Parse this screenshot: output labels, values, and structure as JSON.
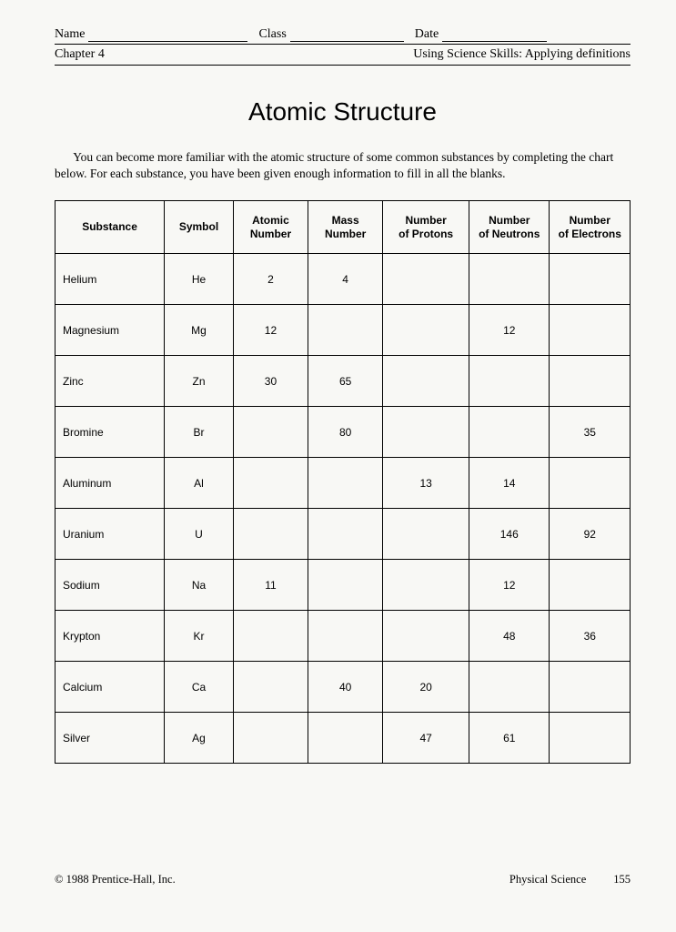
{
  "header": {
    "name_label": "Name",
    "class_label": "Class",
    "date_label": "Date",
    "chapter": "Chapter 4",
    "skills": "Using Science Skills: Applying definitions"
  },
  "title": "Atomic Structure",
  "instructions": "You can become more familiar with the atomic structure of some common substances by completing the chart below. For each substance, you have been given enough information to fill in all the blanks.",
  "table": {
    "columns": [
      "Substance",
      "Symbol",
      "Atomic Number",
      "Mass Number",
      "Number of Protons",
      "Number of Neutrons",
      "Number of Electrons"
    ],
    "col_widths_pct": [
      19,
      12,
      13,
      13,
      15,
      14,
      14
    ],
    "rows": [
      [
        "Helium",
        "He",
        "2",
        "4",
        "",
        "",
        ""
      ],
      [
        "Magnesium",
        "Mg",
        "12",
        "",
        "",
        "12",
        ""
      ],
      [
        "Zinc",
        "Zn",
        "30",
        "65",
        "",
        "",
        ""
      ],
      [
        "Bromine",
        "Br",
        "",
        "80",
        "",
        "",
        "35"
      ],
      [
        "Aluminum",
        "Al",
        "",
        "",
        "13",
        "14",
        ""
      ],
      [
        "Uranium",
        "U",
        "",
        "",
        "",
        "146",
        "92"
      ],
      [
        "Sodium",
        "Na",
        "11",
        "",
        "",
        "12",
        ""
      ],
      [
        "Krypton",
        "Kr",
        "",
        "",
        "",
        "48",
        "36"
      ],
      [
        "Calcium",
        "Ca",
        "",
        "40",
        "20",
        "",
        ""
      ],
      [
        "Silver",
        "Ag",
        "",
        "",
        "47",
        "61",
        ""
      ]
    ]
  },
  "footer": {
    "copyright": "© 1988 Prentice-Hall, Inc.",
    "subject": "Physical Science",
    "page": "155"
  },
  "style": {
    "background_color": "#f8f8f5",
    "text_color": "#000000",
    "border_color": "#000000",
    "title_font": "Arial",
    "body_font": "Georgia",
    "title_fontsize": 28,
    "header_fontsize": 14,
    "body_fontsize": 13.5,
    "table_fontsize": 12,
    "footer_fontsize": 12.5
  }
}
